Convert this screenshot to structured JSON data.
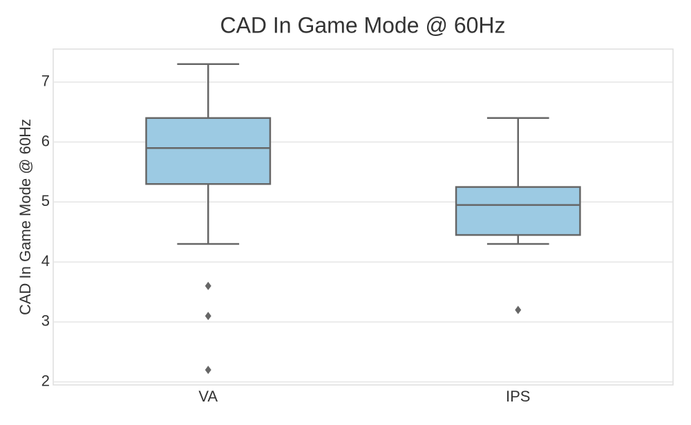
{
  "chart_data": {
    "type": "box",
    "title": "CAD In Game Mode @ 60Hz",
    "y_label": "CAD In Game Mode @ 60Hz",
    "categories": [
      "VA",
      "IPS"
    ],
    "boxes": [
      {
        "whislo": 4.3,
        "q1": 5.3,
        "med": 5.9,
        "q3": 6.4,
        "whishi": 7.3,
        "fliers": [
          3.6,
          3.1,
          2.2
        ]
      },
      {
        "whislo": 4.3,
        "q1": 4.45,
        "med": 4.95,
        "q3": 5.25,
        "whishi": 6.4,
        "fliers": [
          3.2
        ]
      }
    ],
    "color": "#9ccae3",
    "edge_color": "#666666",
    "ylim": [
      1.95,
      7.55
    ],
    "yticks": [
      2,
      3,
      4,
      5,
      6,
      7
    ],
    "grid": true
  }
}
